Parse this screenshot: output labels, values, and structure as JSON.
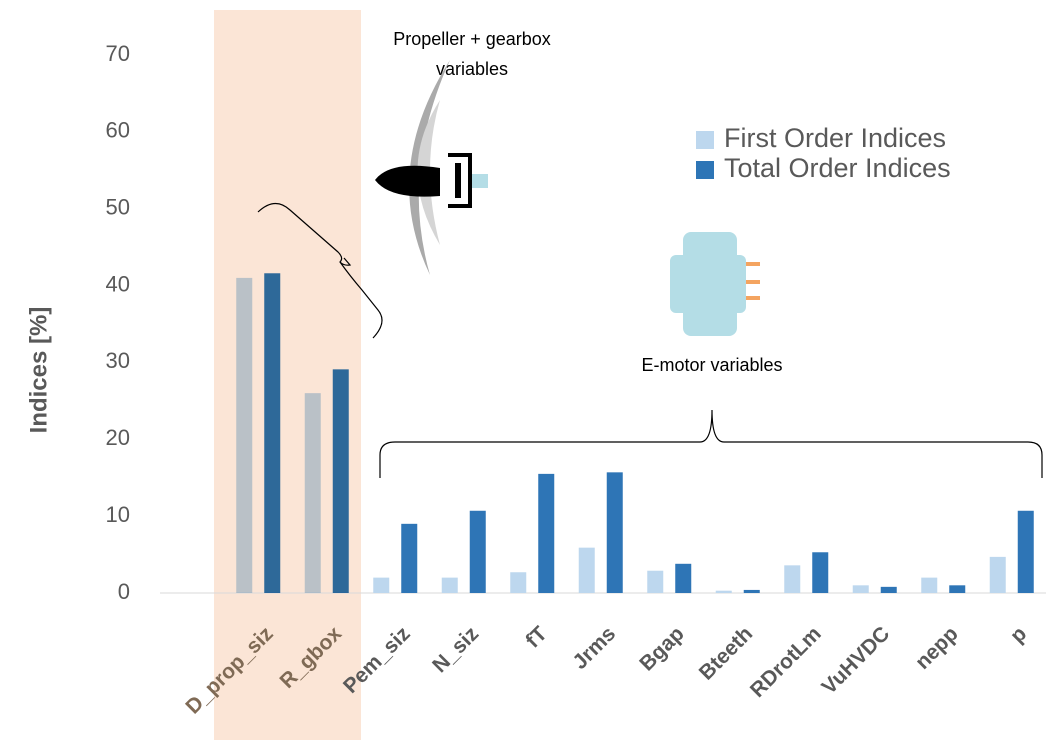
{
  "chart_data": {
    "type": "bar",
    "y_label": "Indices [%]",
    "annotations": [
      "Propeller + gearbox variables",
      "E-motor variables"
    ],
    "categories": [
      "D_prop_siz",
      "R_gbox",
      "Pem_siz",
      "N_siz",
      "fT",
      "Jrms",
      "Bgap",
      "Bteeth",
      "RDrotLm",
      "VuHVDC",
      "nepp",
      "p"
    ],
    "series": [
      {
        "name": "First Order Indices",
        "color": "#bdd7ee",
        "values": [
          41,
          26,
          2,
          2,
          2.7,
          5.9,
          2.9,
          0.3,
          3.6,
          1.0,
          2,
          4.7
        ]
      },
      {
        "name": "Total Order Indices",
        "color": "#2e75b6",
        "values": [
          41.6,
          29.1,
          9,
          10.7,
          15.5,
          15.7,
          3.8,
          0.4,
          5.3,
          0.8,
          1.0,
          10.7
        ]
      }
    ],
    "ylim": [
      0,
      70
    ],
    "yticks": [
      0,
      10,
      20,
      30,
      40,
      50,
      60,
      70
    ],
    "grid": false
  }
}
